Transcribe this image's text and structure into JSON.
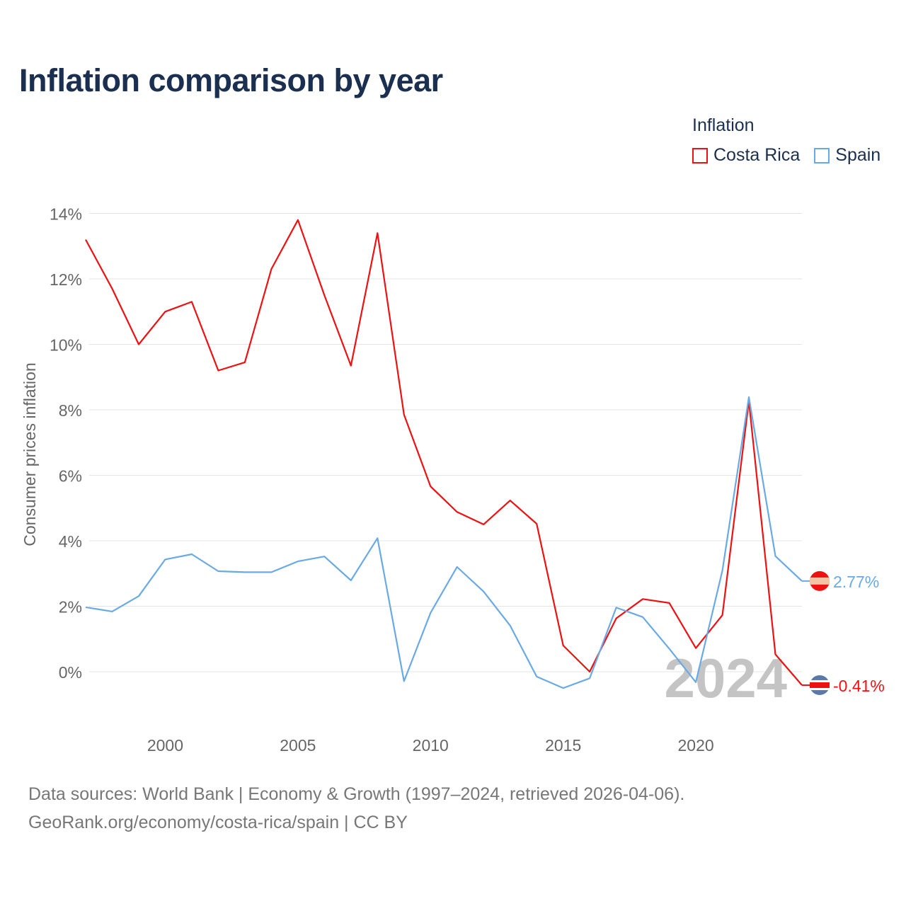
{
  "chart_data": {
    "type": "line",
    "title": "Inflation comparison by year",
    "legend_title": "Inflation",
    "ylabel": "Consumer prices inflation",
    "xlabel": "",
    "xlim": [
      1997,
      2024
    ],
    "ylim": [
      -1.5,
      14
    ],
    "x_ticks": [
      2000,
      2005,
      2010,
      2015,
      2020
    ],
    "y_ticks": [
      0,
      2,
      4,
      6,
      8,
      10,
      12,
      14
    ],
    "y_tick_labels": [
      "0%",
      "2%",
      "4%",
      "6%",
      "8%",
      "10%",
      "12%",
      "14%"
    ],
    "current_year_label": "2024",
    "x": [
      1997,
      1998,
      1999,
      2000,
      2001,
      2002,
      2003,
      2004,
      2005,
      2006,
      2007,
      2008,
      2009,
      2010,
      2011,
      2012,
      2013,
      2014,
      2015,
      2016,
      2017,
      2018,
      2019,
      2020,
      2021,
      2022,
      2023,
      2024
    ],
    "series": [
      {
        "name": "Costa Rica",
        "color": "#ee1111",
        "end_label": "-0.41%",
        "values": [
          13.2,
          11.7,
          10.0,
          11.0,
          11.3,
          9.2,
          9.45,
          12.3,
          13.8,
          11.5,
          9.35,
          13.4,
          7.85,
          5.66,
          4.88,
          4.5,
          5.23,
          4.52,
          0.8,
          0.0,
          1.63,
          2.22,
          2.1,
          0.72,
          1.73,
          8.27,
          0.53,
          -0.41
        ]
      },
      {
        "name": "Spain",
        "color": "#6aaae4",
        "end_label": "2.77%",
        "values": [
          1.97,
          1.84,
          2.31,
          3.43,
          3.59,
          3.07,
          3.04,
          3.04,
          3.37,
          3.52,
          2.79,
          4.08,
          -0.29,
          1.8,
          3.2,
          2.45,
          1.41,
          -0.15,
          -0.5,
          -0.2,
          1.96,
          1.67,
          0.7,
          -0.32,
          3.09,
          8.39,
          3.53,
          2.77
        ]
      }
    ]
  },
  "footer": {
    "line1": "Data sources: World Bank | Economy & Growth (1997–2024, retrieved 2026-04-06).",
    "line2": "GeoRank.org/economy/costa-rica/spain | CC BY"
  },
  "flags": {
    "spain_icon": "spain-flag-icon",
    "costa_rica_icon": "costa-rica-flag-icon"
  }
}
